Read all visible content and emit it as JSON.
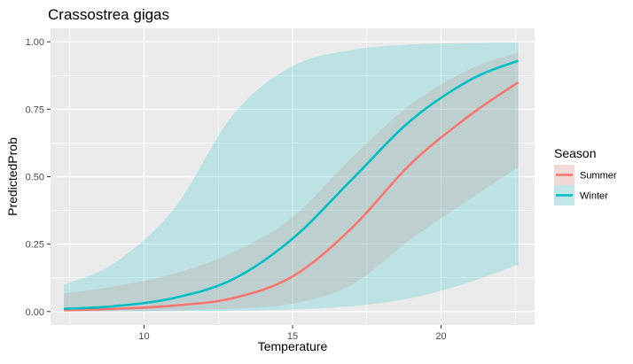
{
  "chart_data": {
    "type": "line",
    "title": "Crassostrea gigas",
    "xlabel": "Temperature",
    "ylabel": "PredictedProb",
    "xlim": [
      6.85,
      23.15
    ],
    "ylim": [
      -0.05,
      1.05
    ],
    "x_ticks": [
      10,
      15,
      20
    ],
    "x_tick_labels": [
      "10",
      "15",
      "20"
    ],
    "y_ticks": [
      0,
      0.25,
      0.5,
      0.75,
      1
    ],
    "y_tick_labels": [
      "0.00",
      "0.25",
      "0.50",
      "0.75",
      "1.00"
    ],
    "grid": true,
    "legend": {
      "title": "Season",
      "position": "right"
    },
    "x_range": [
      7.3,
      22.6
    ],
    "series": [
      {
        "name": "Summer",
        "color": "#F8766D",
        "ribbon_color": "#F8766D",
        "ribbon_opacity": 0.2,
        "x": [
          7.3,
          9,
          11,
          13,
          15,
          17,
          19,
          21,
          22.6
        ],
        "y": [
          0.005,
          0.01,
          0.022,
          0.05,
          0.13,
          0.31,
          0.55,
          0.73,
          0.85
        ],
        "lower": [
          0.0,
          0.001,
          0.004,
          0.011,
          0.03,
          0.1,
          0.27,
          0.42,
          0.535
        ],
        "upper": [
          0.067,
          0.093,
          0.14,
          0.22,
          0.35,
          0.57,
          0.77,
          0.9,
          0.96
        ]
      },
      {
        "name": "Winter",
        "color": "#00BFC4",
        "ribbon_color": "#00BFC4",
        "ribbon_opacity": 0.2,
        "x": [
          7.3,
          9,
          11,
          13,
          15,
          17,
          19,
          21,
          22.6
        ],
        "y": [
          0.01,
          0.02,
          0.05,
          0.12,
          0.27,
          0.49,
          0.71,
          0.86,
          0.93
        ],
        "lower": [
          0.0,
          0.0,
          0.001,
          0.003,
          0.008,
          0.02,
          0.05,
          0.11,
          0.175
        ],
        "upper": [
          0.1,
          0.18,
          0.38,
          0.73,
          0.91,
          0.97,
          0.99,
          0.996,
          0.998
        ]
      }
    ]
  }
}
